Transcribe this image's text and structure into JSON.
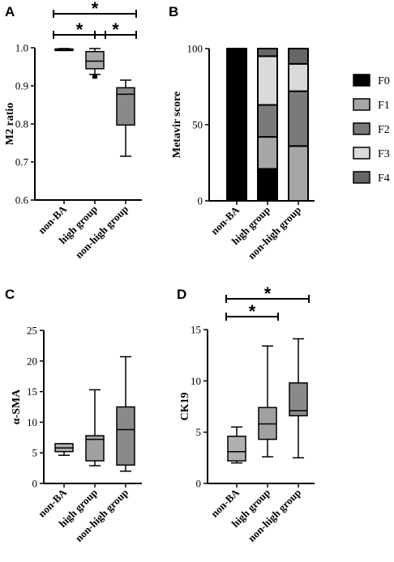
{
  "panels": {
    "A": "A",
    "B": "B",
    "C": "C",
    "D": "D"
  },
  "chart_data": [
    {
      "id": "A",
      "type": "box",
      "ylabel": "M2 ratio",
      "ylim": [
        0.6,
        1.0
      ],
      "yticks": [
        "0.6",
        "0.7",
        "0.8",
        "0.9",
        "1.0"
      ],
      "categories": [
        "non-BA",
        "high group",
        "non-high group"
      ],
      "colors": [
        "#d0d0d0",
        "#a8a8a8",
        "#8a8a8a"
      ],
      "boxes": [
        {
          "min": 0.993,
          "q1": 0.994,
          "median": 0.995,
          "q3": 0.997,
          "max": 0.998
        },
        {
          "min": 0.93,
          "q1": 0.945,
          "median": 0.965,
          "q3": 0.99,
          "max": 0.998
        },
        {
          "min": 0.715,
          "q1": 0.797,
          "median": 0.878,
          "q3": 0.895,
          "max": 0.915
        }
      ],
      "outliers": [
        [
          1,
          0.925
        ]
      ],
      "significance": [
        {
          "from": 0,
          "to": 2,
          "label": "*"
        },
        {
          "from": 0,
          "to": 1,
          "label": "*"
        },
        {
          "from": 1,
          "to": 2,
          "label": "*"
        }
      ]
    },
    {
      "id": "B",
      "type": "stacked_bar",
      "ylabel": "Metavir score",
      "ylim": [
        0,
        100
      ],
      "yticks": [
        "0",
        "50",
        "100"
      ],
      "categories": [
        "non-BA",
        "high group",
        "non-high group"
      ],
      "series": [
        {
          "name": "F0",
          "color": "#000000",
          "values": [
            100,
            21,
            0
          ]
        },
        {
          "name": "F1",
          "color": "#a6a6a6",
          "values": [
            0,
            21,
            36
          ]
        },
        {
          "name": "F2",
          "color": "#7a7a7a",
          "values": [
            0,
            21,
            36
          ]
        },
        {
          "name": "F3",
          "color": "#dadada",
          "values": [
            0,
            32,
            18
          ]
        },
        {
          "name": "F4",
          "color": "#666666",
          "values": [
            0,
            5,
            10
          ]
        }
      ],
      "legend": "right"
    },
    {
      "id": "C",
      "type": "box",
      "ylabel": "α-SMA",
      "ylim": [
        0,
        25
      ],
      "yticks": [
        "0",
        "5",
        "10",
        "15",
        "20",
        "25"
      ],
      "categories": [
        "non-BA",
        "high group",
        "non-high group"
      ],
      "colors": [
        "#b0b0b0",
        "#a0a0a0",
        "#8a8a8a"
      ],
      "boxes": [
        {
          "min": 4.6,
          "q1": 5.2,
          "median": 5.8,
          "q3": 6.5,
          "max": 6.5
        },
        {
          "min": 2.9,
          "q1": 3.7,
          "median": 7.2,
          "q3": 7.8,
          "max": 15.3
        },
        {
          "min": 2.0,
          "q1": 3.0,
          "median": 8.8,
          "q3": 12.5,
          "max": 20.7
        }
      ],
      "outliers": [],
      "significance": []
    },
    {
      "id": "D",
      "type": "box",
      "ylabel": "CK19",
      "ylim": [
        0,
        15
      ],
      "yticks": [
        "0",
        "5",
        "10",
        "15"
      ],
      "categories": [
        "non-BA",
        "high group",
        "non-high group"
      ],
      "colors": [
        "#b0b0b0",
        "#a0a0a0",
        "#8a8a8a"
      ],
      "boxes": [
        {
          "min": 2.0,
          "q1": 2.2,
          "median": 3.1,
          "q3": 4.6,
          "max": 5.5
        },
        {
          "min": 2.6,
          "q1": 4.3,
          "median": 5.8,
          "q3": 7.4,
          "max": 13.4
        },
        {
          "min": 2.5,
          "q1": 6.6,
          "median": 7.1,
          "q3": 9.8,
          "max": 14.1
        }
      ],
      "outliers": [],
      "significance": [
        {
          "from": 0,
          "to": 2,
          "label": "*"
        },
        {
          "from": 0,
          "to": 1,
          "label": "*"
        }
      ]
    }
  ]
}
